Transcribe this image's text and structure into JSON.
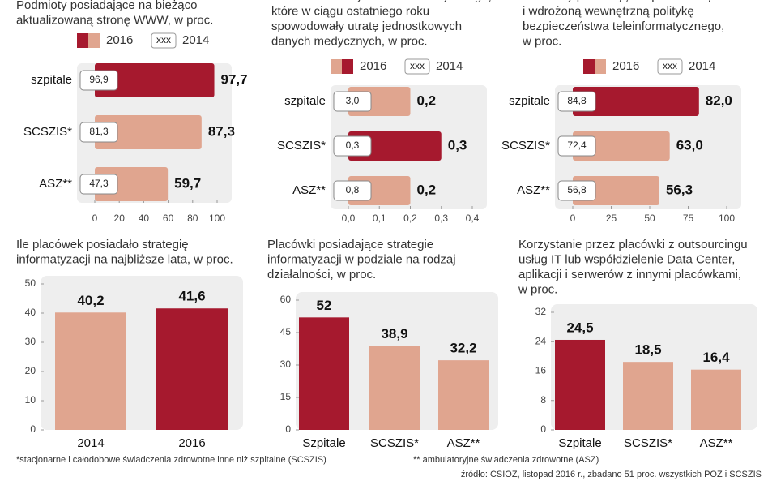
{
  "chart_data": [
    {
      "type": "hbar",
      "title_lines": [
        "Podmioty posiadające na bieżąco",
        "aktualizowaną stronę WWW, w proc."
      ],
      "legend_marker": "xxx",
      "categories": [
        "szpitale",
        "SCSZIS*",
        "ASZ**"
      ],
      "series": [
        {
          "name": "2016",
          "colors": [
            "#a6192e",
            "#e0a58f",
            "#e0a58f"
          ],
          "values": [
            97.7,
            87.3,
            59.7
          ],
          "value_labels": [
            "97,7",
            "87,3",
            "59,7"
          ]
        },
        {
          "name": "2014",
          "color": "#ffffff",
          "values": [
            96.9,
            81.3,
            47.3
          ],
          "value_labels": [
            "96,9",
            "81,3",
            "47,3"
          ]
        }
      ],
      "xlim": [
        0,
        100
      ],
      "xticks": [
        0,
        20,
        40,
        60,
        80,
        100
      ]
    },
    {
      "type": "hbar",
      "title_lines": [
        "Istotne awarie systemu informatycznego,",
        "które w ciągu ostatniego roku",
        "spowodowały utratę jednostkowych",
        "danych medycznych, w proc."
      ],
      "legend_marker": "xxx",
      "categories": [
        "szpitale",
        "SCSZIS*",
        "ASZ**"
      ],
      "series": [
        {
          "name": "2016",
          "colors": [
            "#e0a58f",
            "#a6192e",
            "#e0a58f"
          ],
          "values": [
            0.2,
            0.3,
            0.2
          ],
          "value_labels": [
            "0,2",
            "0,3",
            "0,2"
          ]
        },
        {
          "name": "2014",
          "color": "#ffffff",
          "values": [
            3.0,
            0.3,
            0.8
          ],
          "value_labels": [
            "3,0",
            "0,3",
            "0,8"
          ]
        }
      ],
      "xlim": [
        0,
        0.4
      ],
      "xticks": [
        {
          "value": 0,
          "label": "0,0"
        },
        {
          "value": 0.1,
          "label": "0,1"
        },
        {
          "value": 0.2,
          "label": "0,2"
        },
        {
          "value": 0.3,
          "label": "0,3"
        },
        {
          "value": 0.4,
          "label": "0,4"
        }
      ]
    },
    {
      "type": "hbar",
      "title_lines": [
        "Podmioty posiadające opracowaną",
        "i wdrożoną wewnętrzną politykę",
        "bezpieczeństwa teleinformatycznego,",
        "w proc."
      ],
      "legend_marker": "xxx",
      "categories": [
        "szpitale",
        "SCSZIS*",
        "ASZ**"
      ],
      "series": [
        {
          "name": "2016",
          "colors": [
            "#a6192e",
            "#e0a58f",
            "#e0a58f"
          ],
          "values": [
            82.0,
            63.0,
            56.3
          ],
          "value_labels": [
            "82,0",
            "63,0",
            "56,3"
          ]
        },
        {
          "name": "2014",
          "color": "#ffffff",
          "values": [
            84.8,
            72.4,
            56.8
          ],
          "value_labels": [
            "84,8",
            "72,4",
            "56,8"
          ]
        }
      ],
      "xlim": [
        0,
        100
      ],
      "xticks": [
        0,
        25,
        50,
        75,
        100
      ]
    },
    {
      "type": "bar",
      "title_lines": [
        "Ile placówek posiadało strategię",
        "informatyzacji na najbliższe lata, w proc."
      ],
      "categories": [
        "2014",
        "2016"
      ],
      "colors": [
        "#e0a58f",
        "#a6192e"
      ],
      "values": [
        40.2,
        41.6
      ],
      "value_labels": [
        "40,2",
        "41,6"
      ],
      "ylim": [
        0,
        50
      ],
      "yticks": [
        0,
        10,
        20,
        30,
        40,
        50
      ]
    },
    {
      "type": "bar",
      "title_lines": [
        "Placówki posiadające strategie",
        "informatyzacji w podziale na rodzaj",
        "działalności, w proc."
      ],
      "categories": [
        "Szpitale",
        "SCSZIS*",
        "ASZ**"
      ],
      "colors": [
        "#a6192e",
        "#e0a58f",
        "#e0a58f"
      ],
      "values": [
        52,
        38.9,
        32.2
      ],
      "value_labels": [
        "52",
        "38,9",
        "32,2"
      ],
      "ylim": [
        0,
        60
      ],
      "yticks": [
        0,
        15,
        30,
        45,
        60
      ]
    },
    {
      "type": "bar",
      "title_lines": [
        "Korzystanie przez placówki z outsourcingu",
        "usług IT lub współdzielenie Data Center,",
        "aplikacji i serwerów z innymi placówkami,",
        "w proc."
      ],
      "categories": [
        "Szpitale",
        "SCSZIS*",
        "ASZ**"
      ],
      "colors": [
        "#a6192e",
        "#e0a58f",
        "#e0a58f"
      ],
      "values": [
        24.5,
        18.5,
        16.4
      ],
      "value_labels": [
        "24,5",
        "18,5",
        "16,4"
      ],
      "ylim": [
        0,
        32
      ],
      "yticks": [
        0,
        8,
        16,
        24,
        32
      ]
    }
  ],
  "footnotes": [
    "*stacjonarne i całodobowe świadczenia zdrowotne inne niż szpitalne (SCSZIS)",
    "** ambulatoryjne świadczenia zdrowotne (ASZ)"
  ],
  "source": "źródło: CSIOZ, listopad 2016 r., zbadano 51 proc. wszystkich POZ i SCSZIS"
}
